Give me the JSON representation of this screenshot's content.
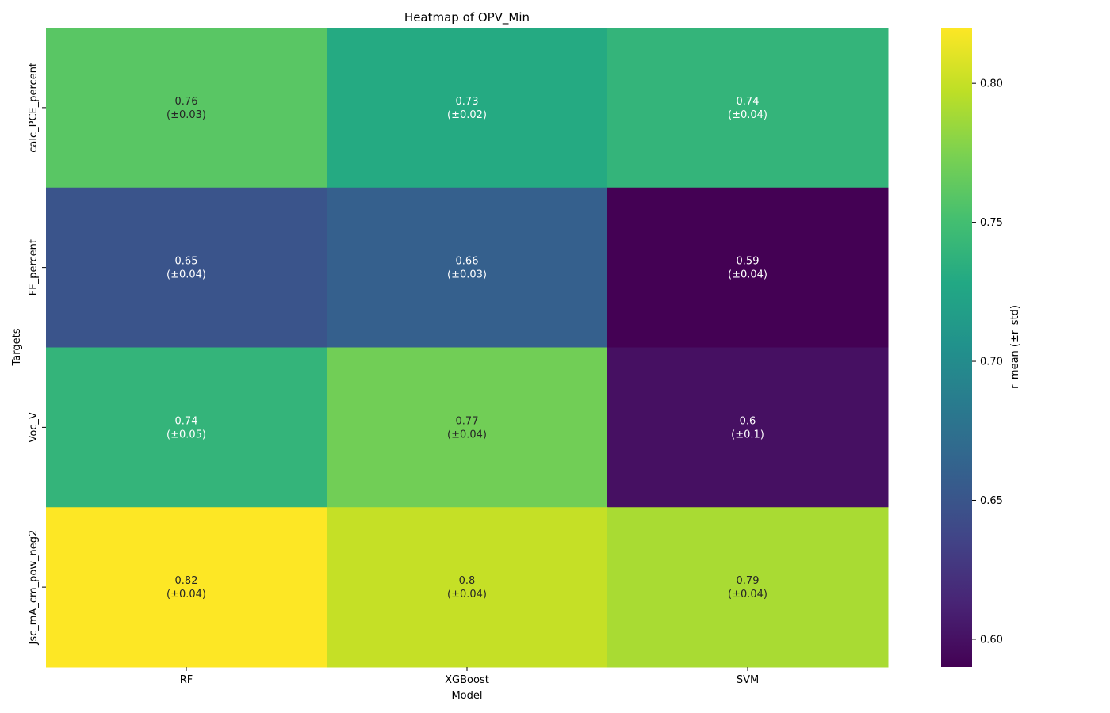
{
  "chart_data": {
    "type": "heatmap",
    "title": "Heatmap of OPV_Min",
    "xlabel": "Model",
    "ylabel": "Targets",
    "x_categories": [
      "RF",
      "XGBoost",
      "SVM"
    ],
    "y_categories": [
      "calc_PCE_percent",
      "FF_percent",
      "Voc_V",
      "Jsc_mA_cm_pow_neg2"
    ],
    "values": [
      [
        0.76,
        0.73,
        0.74
      ],
      [
        0.65,
        0.66,
        0.59
      ],
      [
        0.74,
        0.77,
        0.6
      ],
      [
        0.82,
        0.8,
        0.79
      ]
    ],
    "cell_labels": [
      [
        [
          "0.76",
          "(±0.03)"
        ],
        [
          "0.73",
          "(±0.02)"
        ],
        [
          "0.74",
          "(±0.04)"
        ]
      ],
      [
        [
          "0.65",
          "(±0.04)"
        ],
        [
          "0.66",
          "(±0.03)"
        ],
        [
          "0.59",
          "(±0.04)"
        ]
      ],
      [
        [
          "0.74",
          "(±0.05)"
        ],
        [
          "0.77",
          "(±0.04)"
        ],
        [
          "0.6",
          "(±0.1)"
        ]
      ],
      [
        [
          "0.82",
          "(±0.04)"
        ],
        [
          "0.8",
          "(±0.04)"
        ],
        [
          "0.79",
          "(±0.04)"
        ]
      ]
    ],
    "colormap": "viridis",
    "colorbar": {
      "label": "r_mean (±r_std)",
      "range": [
        0.59,
        0.82
      ],
      "ticks": [
        0.6,
        0.65,
        0.7,
        0.75,
        0.8
      ],
      "tick_labels": [
        "0.60",
        "0.65",
        "0.70",
        "0.75",
        "0.80"
      ]
    }
  }
}
